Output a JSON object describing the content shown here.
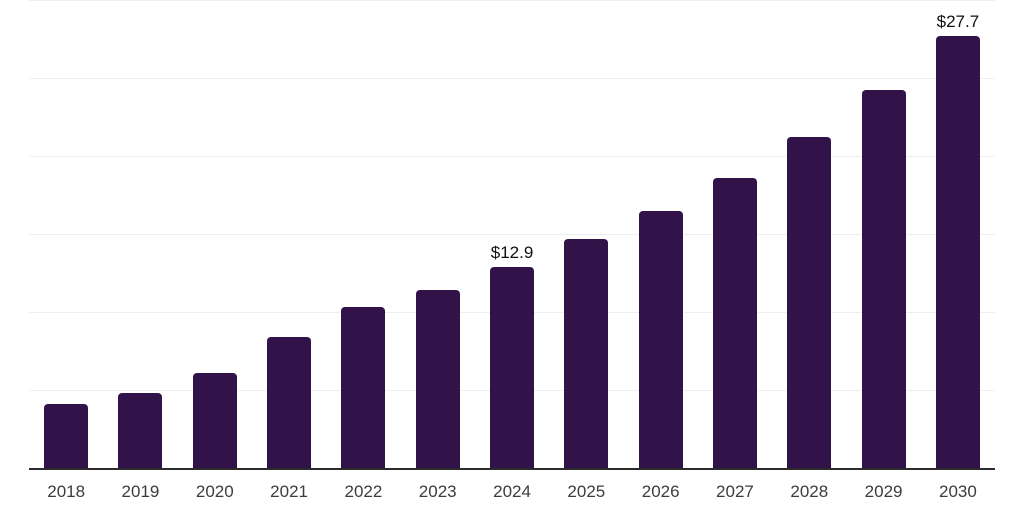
{
  "chart_data": {
    "type": "bar",
    "title": "",
    "xlabel": "",
    "ylabel": "",
    "categories": [
      "2018",
      "2019",
      "2020",
      "2021",
      "2022",
      "2023",
      "2024",
      "2025",
      "2026",
      "2027",
      "2028",
      "2029",
      "2030"
    ],
    "values": [
      4.1,
      4.8,
      6.1,
      8.4,
      10.3,
      11.4,
      12.9,
      14.7,
      16.5,
      18.6,
      21.2,
      24.2,
      27.7
    ],
    "data_labels": [
      "",
      "",
      "",
      "",
      "",
      "",
      "$12.9",
      "",
      "",
      "",
      "",
      "",
      "$27.7"
    ],
    "value_prefix": "$",
    "ylim": [
      0,
      30
    ],
    "gridline_values": [
      5,
      10,
      15,
      20,
      25,
      30
    ],
    "grid": true,
    "legend": false,
    "colors": {
      "bar": "#321349",
      "gridline": "#eeeeee",
      "axis_line": "#2b2b2b",
      "tick_label": "#3c3c3c",
      "data_label": "#101010",
      "background": "#ffffff"
    }
  }
}
